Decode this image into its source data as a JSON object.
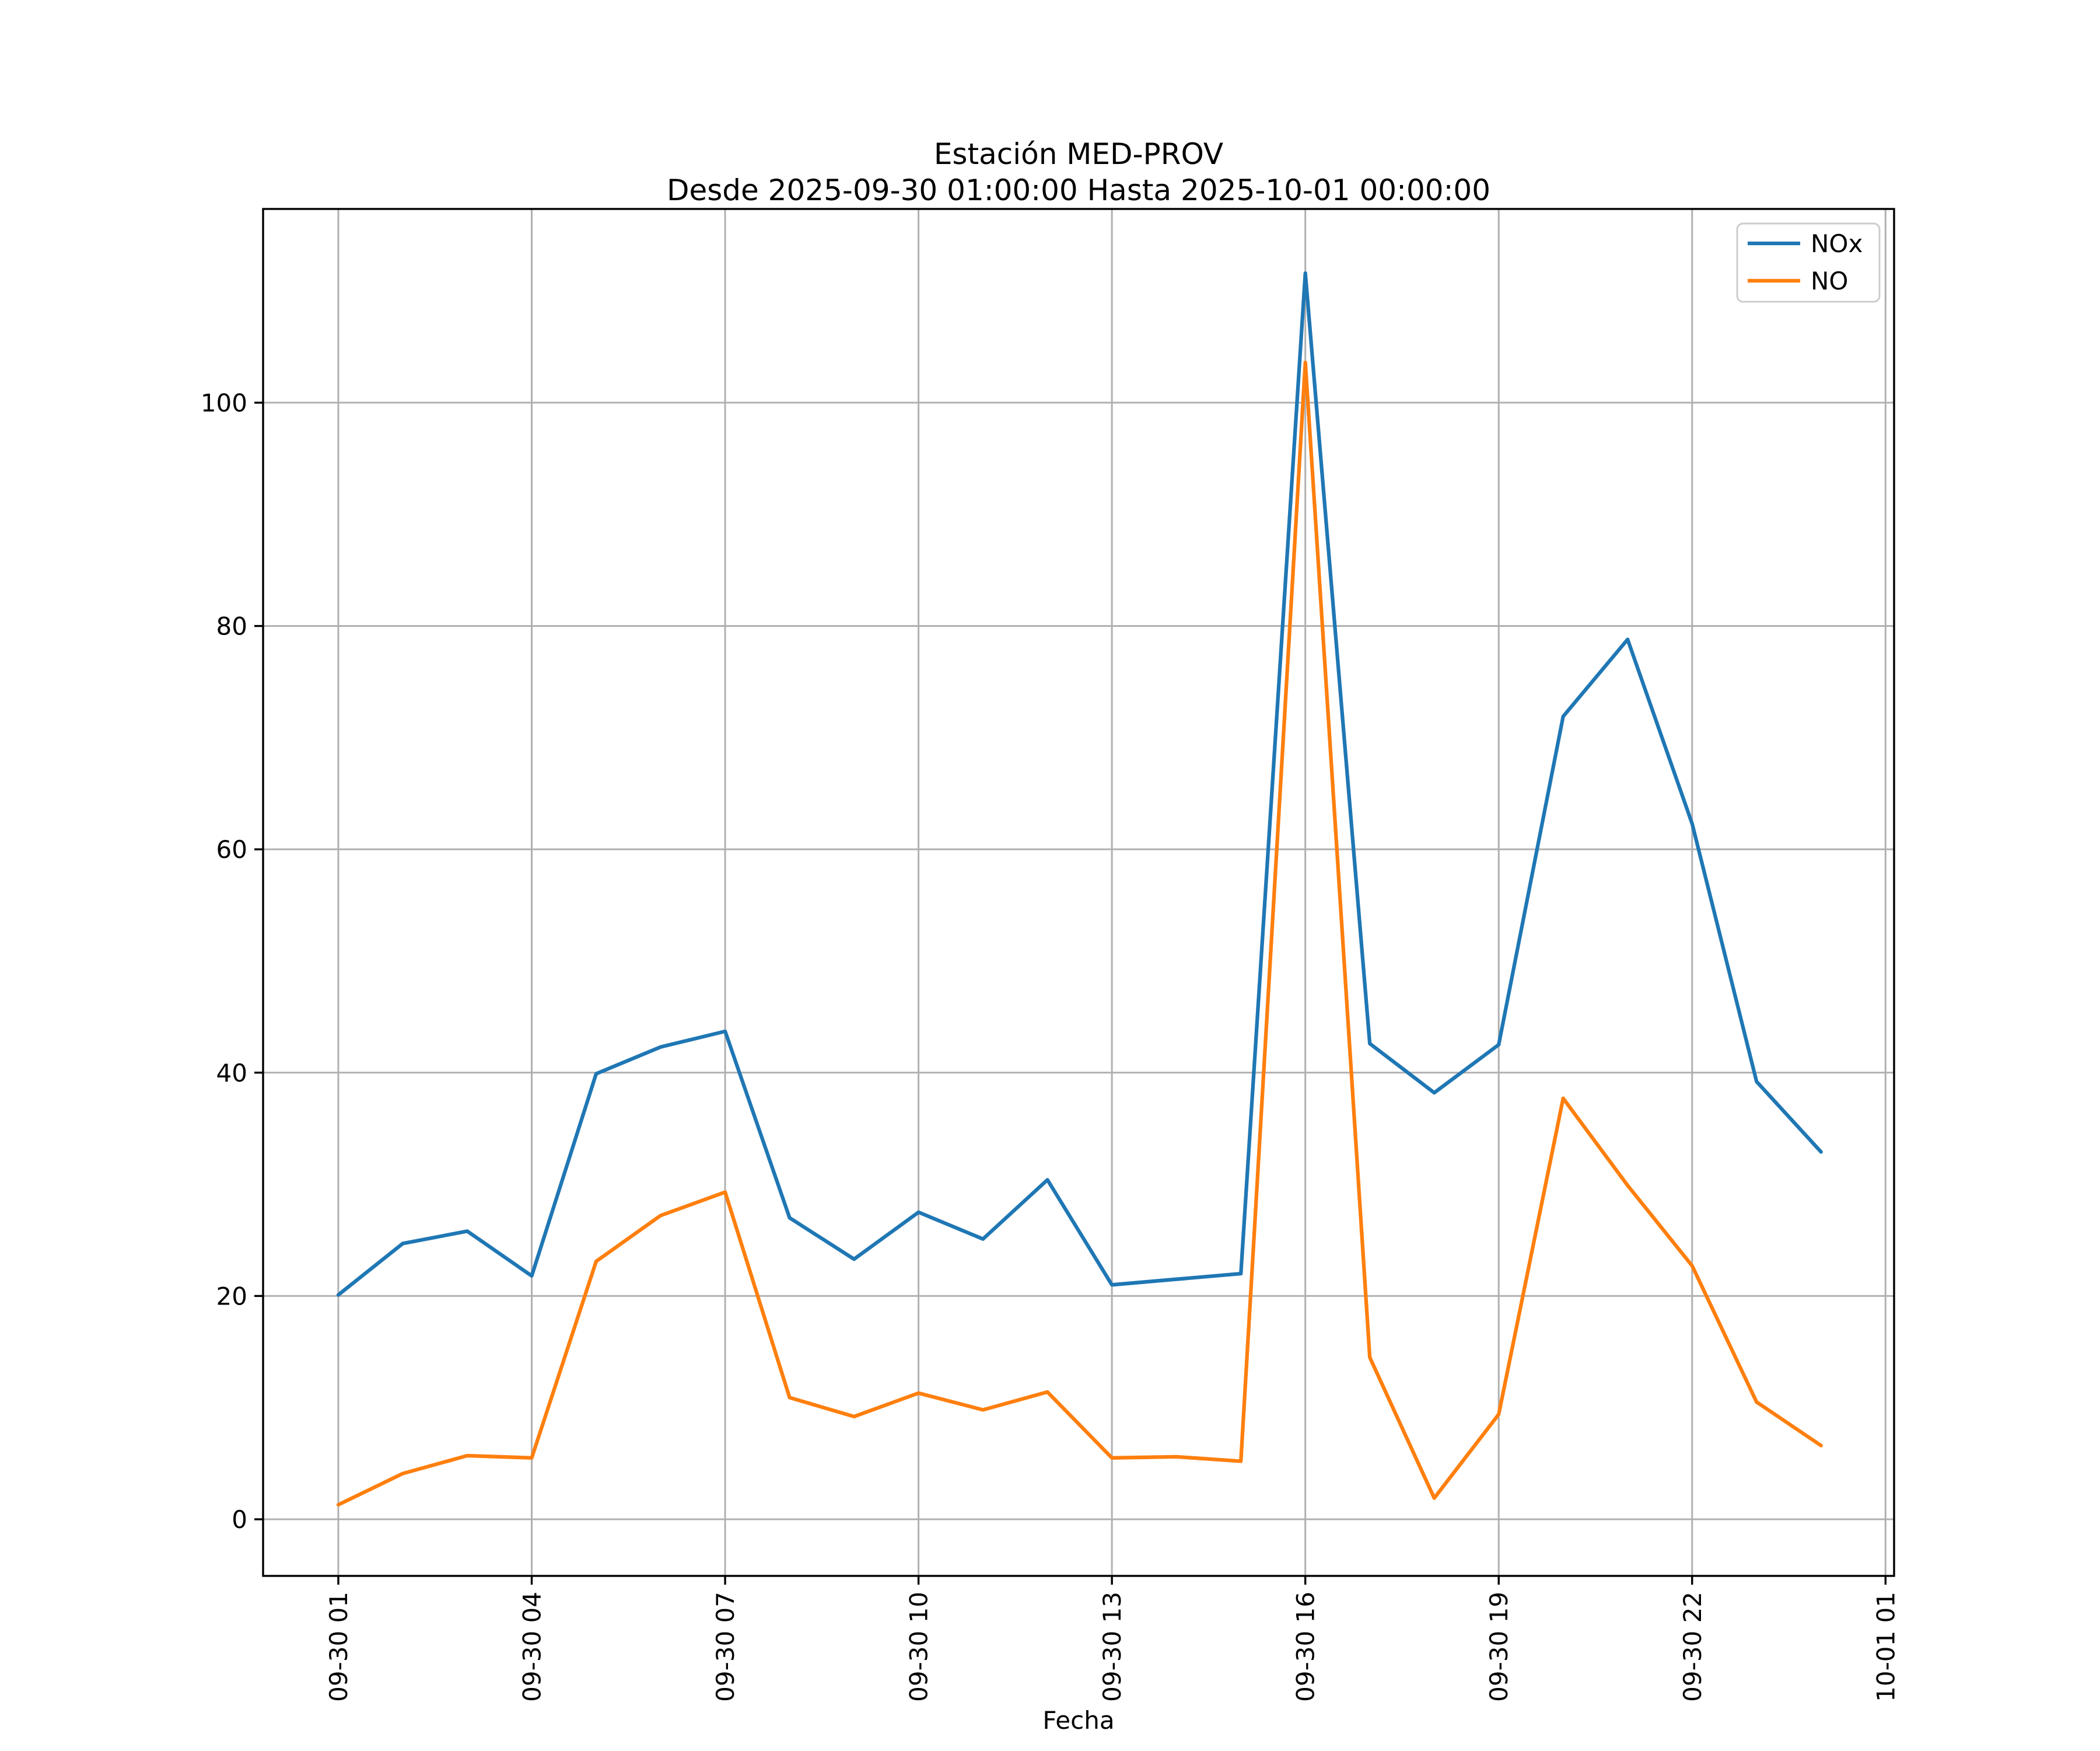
{
  "figure": {
    "title": "Estación MED-PROV",
    "subtitle": "Desde 2025-09-30 01:00:00 Hasta 2025-10-01 00:00:00",
    "xlabel": "Fecha"
  },
  "legend": {
    "entries": [
      {
        "label": "NOx",
        "color": "#1f77b4"
      },
      {
        "label": "NO",
        "color": "#ff7f0e"
      }
    ]
  },
  "chart_data": {
    "type": "line",
    "title": "Estación MED-PROV",
    "subtitle": "Desde 2025-09-30 01:00:00 Hasta 2025-10-01 00:00:00",
    "xlabel": "Fecha",
    "ylabel": "",
    "grid": true,
    "grid_color": "#b0b0b0",
    "legend_position": "upper right",
    "x_hours": [
      1,
      2,
      3,
      4,
      5,
      6,
      7,
      8,
      9,
      10,
      11,
      12,
      13,
      14,
      15,
      16,
      17,
      18,
      19,
      20,
      21,
      22,
      23,
      24
    ],
    "x_timestamps": [
      "2025-09-30 01:00",
      "2025-09-30 02:00",
      "2025-09-30 03:00",
      "2025-09-30 04:00",
      "2025-09-30 05:00",
      "2025-09-30 06:00",
      "2025-09-30 07:00",
      "2025-09-30 08:00",
      "2025-09-30 09:00",
      "2025-09-30 10:00",
      "2025-09-30 11:00",
      "2025-09-30 12:00",
      "2025-09-30 13:00",
      "2025-09-30 14:00",
      "2025-09-30 15:00",
      "2025-09-30 16:00",
      "2025-09-30 17:00",
      "2025-09-30 18:00",
      "2025-09-30 19:00",
      "2025-09-30 20:00",
      "2025-09-30 21:00",
      "2025-09-30 22:00",
      "2025-09-30 23:00",
      "2025-10-01 00:00"
    ],
    "series": [
      {
        "name": "NOx",
        "color": "#1f77b4",
        "values": [
          20.1,
          24.7,
          25.8,
          21.8,
          39.9,
          42.3,
          43.7,
          27.0,
          23.3,
          27.5,
          25.1,
          30.4,
          21.0,
          21.5,
          22.0,
          111.6,
          42.6,
          38.2,
          42.5,
          71.9,
          78.8,
          62.3,
          39.2,
          32.9
        ]
      },
      {
        "name": "NO",
        "color": "#ff7f0e",
        "values": [
          1.3,
          4.1,
          5.7,
          5.5,
          23.1,
          27.2,
          29.3,
          10.9,
          9.2,
          11.3,
          9.8,
          11.4,
          5.5,
          5.6,
          5.2,
          103.6,
          14.5,
          1.9,
          9.4,
          37.7,
          29.9,
          22.7,
          10.5,
          6.6
        ]
      }
    ],
    "xticks": {
      "hours": [
        1,
        4,
        7,
        10,
        13,
        16,
        19,
        22,
        25
      ],
      "labels": [
        "09-30 01",
        "09-30 04",
        "09-30 07",
        "09-30 10",
        "09-30 13",
        "09-30 16",
        "09-30 19",
        "09-30 22",
        "10-01 01"
      ]
    },
    "yticks": [
      0,
      20,
      40,
      60,
      80,
      100
    ],
    "xlim_hours": [
      -0.167,
      25.133
    ],
    "ylim": [
      -5.07,
      117.35
    ]
  }
}
